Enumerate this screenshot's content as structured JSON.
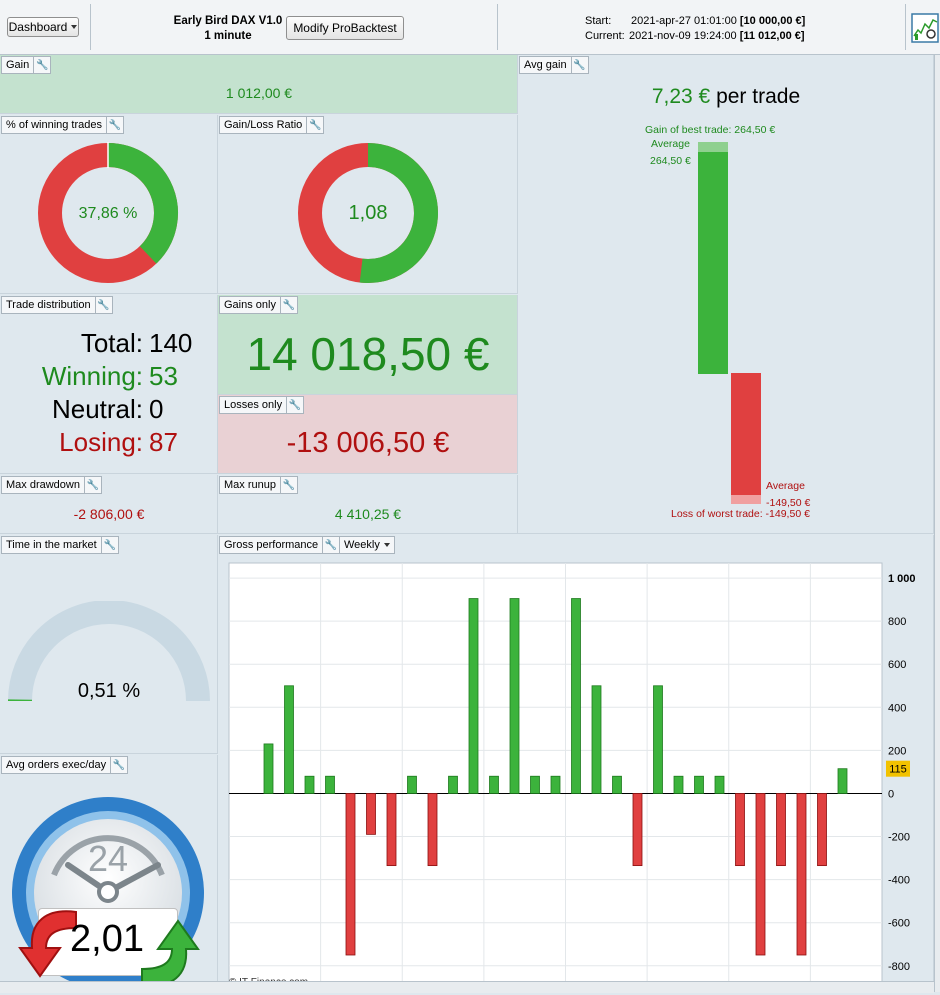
{
  "toolbar": {
    "dashboard_label": "Dashboard",
    "strategy_name": "Early Bird DAX V1.0",
    "timeframe": "1 minute",
    "modify_button": "Modify ProBacktest",
    "start_label": "Start:",
    "start_date": "2021-apr-27 01:01:00",
    "start_capital": "[10 000,00 €]",
    "current_label": "Current:",
    "current_date": "2021-nov-09 19:24:00",
    "current_capital": "[11 012,00 €]"
  },
  "gain": {
    "title": "Gain",
    "value": "1 012,00 €"
  },
  "avg_gain": {
    "title": "Avg gain",
    "value": "7,23 €",
    "suffix": "per trade",
    "best_label": "Gain of best trade: 264,50 €",
    "avg_top_label": "Average",
    "avg_top_value": "264,50 €",
    "avg_bottom_label": "Average",
    "avg_bottom_value": "-149,50 €",
    "worst_label": "Loss of worst trade: -149,50 €"
  },
  "winning_pct": {
    "title": "% of winning trades",
    "value": "37,86 %",
    "fraction": 0.3786
  },
  "gain_loss_ratio": {
    "title": "Gain/Loss Ratio",
    "value": "1,08",
    "fraction": 0.519
  },
  "trade_distribution": {
    "title": "Trade distribution",
    "total_label": "Total:",
    "total": "140",
    "winning_label": "Winning:",
    "winning": "53",
    "neutral_label": "Neutral:",
    "neutral": "0",
    "losing_label": "Losing:",
    "losing": "87"
  },
  "gains_only": {
    "title": "Gains only",
    "value": "14 018,50 €"
  },
  "losses_only": {
    "title": "Losses only",
    "value": "-13 006,50 €"
  },
  "max_drawdown": {
    "title": "Max drawdown",
    "value": "-2 806,00 €"
  },
  "max_runup": {
    "title": "Max runup",
    "value": "4 410,25 €"
  },
  "time_in_market": {
    "title": "Time in the market",
    "value": "0,51 %",
    "fraction": 0.0051
  },
  "avg_orders": {
    "title": "Avg orders exec/day",
    "value": "2,01",
    "dial": "24"
  },
  "gross_performance": {
    "title": "Gross performance",
    "period": "Weekly",
    "copyright": "© IT-Finance.com",
    "last_value_badge": "115"
  },
  "colors": {
    "win": "#3cb33c",
    "loss": "#e04040",
    "panel_bg": "#dfe8ee",
    "gain_bg": "#c4e2cf",
    "loss_bg": "#e9d1d4"
  },
  "chart_data": {
    "type": "bar",
    "title": "",
    "xlabel": "",
    "ylabel": "",
    "ylim": [
      -880,
      1070
    ],
    "yticks": [
      "1 000",
      "800",
      "600",
      "400",
      "200",
      "0",
      "-200",
      "-400",
      "-600",
      "-800"
    ],
    "ytick_values": [
      1000,
      800,
      600,
      400,
      200,
      0,
      -200,
      -400,
      -600,
      -800
    ],
    "series": [
      {
        "values": [
          230,
          500,
          80,
          80,
          -750,
          -190,
          -335,
          80,
          -335,
          80,
          905,
          80,
          905,
          80,
          80,
          905,
          500,
          80,
          -335,
          500,
          80,
          80,
          80,
          -335,
          -750,
          -335,
          -750,
          -335,
          115
        ]
      }
    ],
    "grid": true,
    "legend": "none"
  }
}
